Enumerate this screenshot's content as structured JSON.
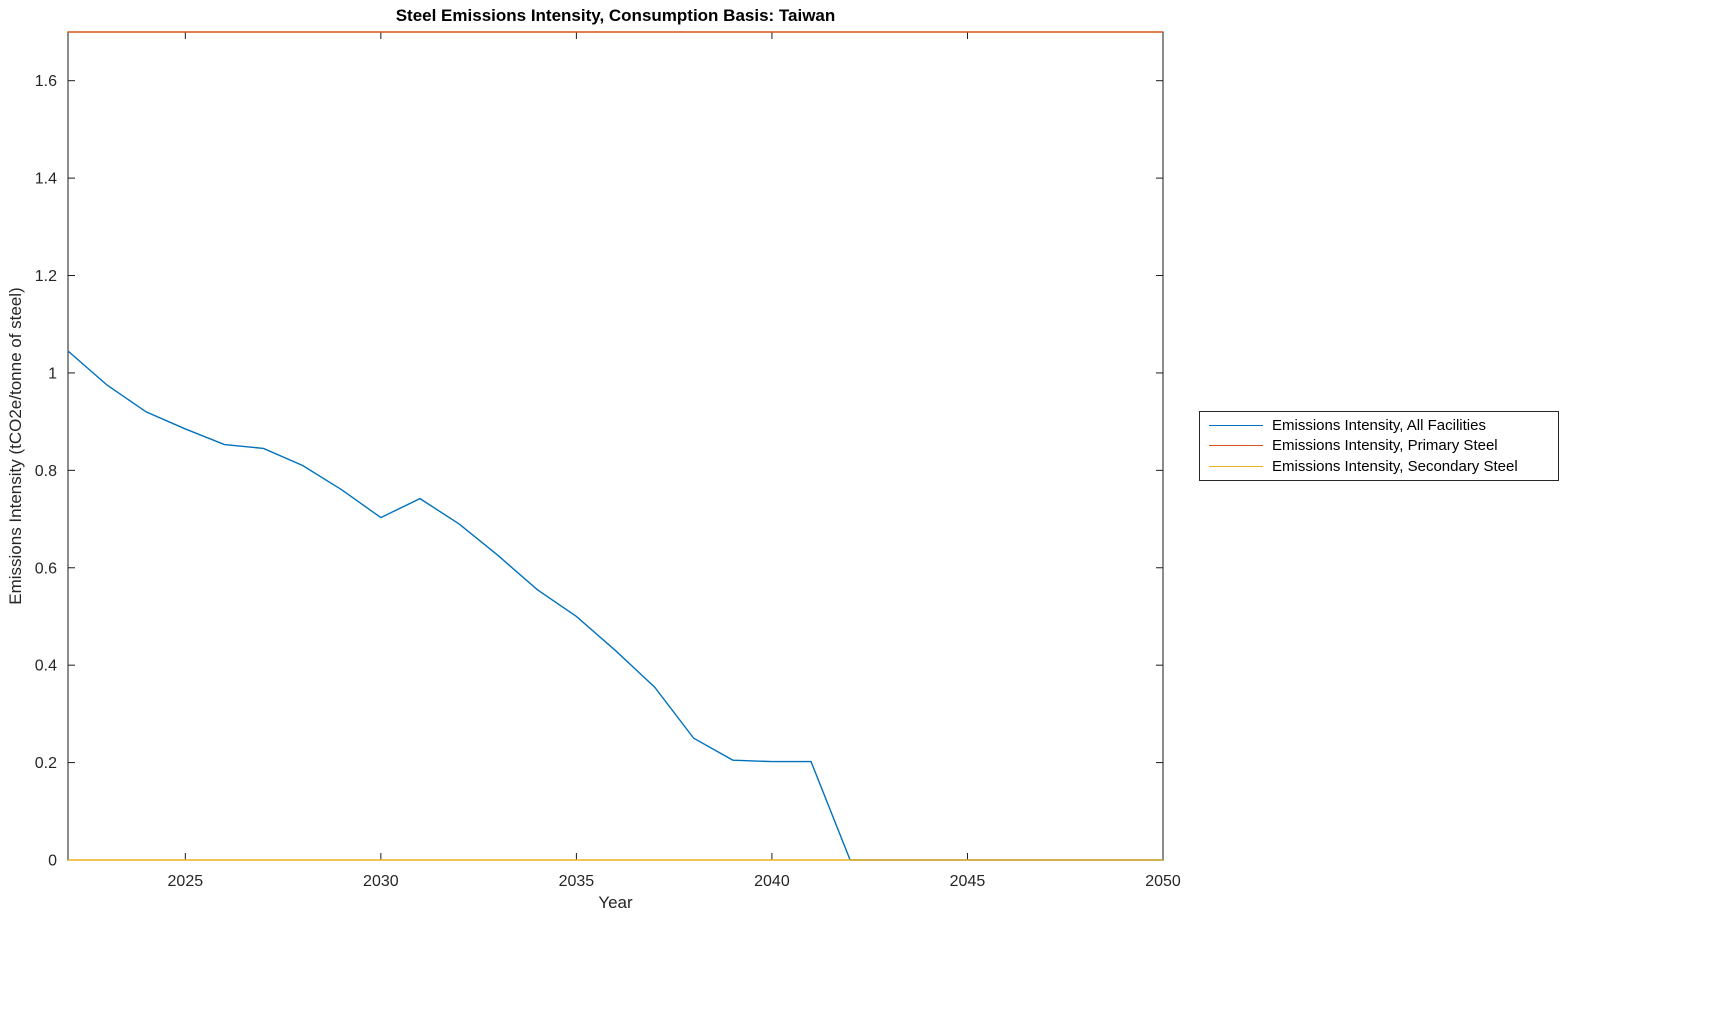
{
  "chart_data": {
    "type": "line",
    "title": "Steel Emissions Intensity, Consumption Basis: Taiwan",
    "xlabel": "Year",
    "ylabel": "Emissions Intensity (tCO2e/tonne of steel)",
    "xlim": [
      2022,
      2050
    ],
    "ylim": [
      0,
      1.7
    ],
    "xticks": [
      2025,
      2030,
      2035,
      2040,
      2045,
      2050
    ],
    "xtick_labels": [
      "2025",
      "2030",
      "2035",
      "2040",
      "2045",
      "2050"
    ],
    "yticks": [
      0,
      0.2,
      0.4,
      0.6,
      0.8,
      1,
      1.2,
      1.4,
      1.6
    ],
    "ytick_labels": [
      "0",
      "0.2",
      "0.4",
      "0.6",
      "0.8",
      "1",
      "1.2",
      "1.4",
      "1.6"
    ],
    "grid": false,
    "legend_position": "right-outside",
    "x": [
      2022,
      2023,
      2024,
      2025,
      2026,
      2027,
      2028,
      2029,
      2030,
      2031,
      2032,
      2033,
      2034,
      2035,
      2036,
      2037,
      2038,
      2039,
      2040,
      2041,
      2042,
      2043,
      2044,
      2045,
      2046,
      2047,
      2048,
      2049,
      2050
    ],
    "series": [
      {
        "name": "Emissions Intensity, All Facilities",
        "color": "#0072BD",
        "values": [
          1.045,
          0.975,
          0.92,
          0.885,
          0.853,
          0.845,
          0.81,
          0.76,
          0.703,
          0.742,
          0.69,
          0.625,
          0.555,
          0.5,
          0.43,
          0.355,
          0.25,
          0.205,
          0.202,
          0.202,
          0,
          0,
          0,
          0,
          0,
          0,
          0,
          0,
          0
        ]
      },
      {
        "name": "Emissions Intensity, Primary Steel",
        "color": "#D95319",
        "values": [
          1.7,
          1.7,
          1.7,
          1.7,
          1.7,
          1.7,
          1.7,
          1.7,
          1.7,
          1.7,
          1.7,
          1.7,
          1.7,
          1.7,
          1.7,
          1.7,
          1.7,
          1.7,
          1.7,
          1.7,
          1.7,
          1.7,
          1.7,
          1.7,
          1.7,
          1.7,
          1.7,
          1.7,
          1.7
        ]
      },
      {
        "name": "Emissions Intensity, Secondary Steel",
        "color": "#EDB120",
        "values": [
          0,
          0,
          0,
          0,
          0,
          0,
          0,
          0,
          0,
          0,
          0,
          0,
          0,
          0,
          0,
          0,
          0,
          0,
          0,
          0,
          0,
          0,
          0,
          0,
          0,
          0,
          0,
          0,
          0
        ]
      }
    ]
  }
}
